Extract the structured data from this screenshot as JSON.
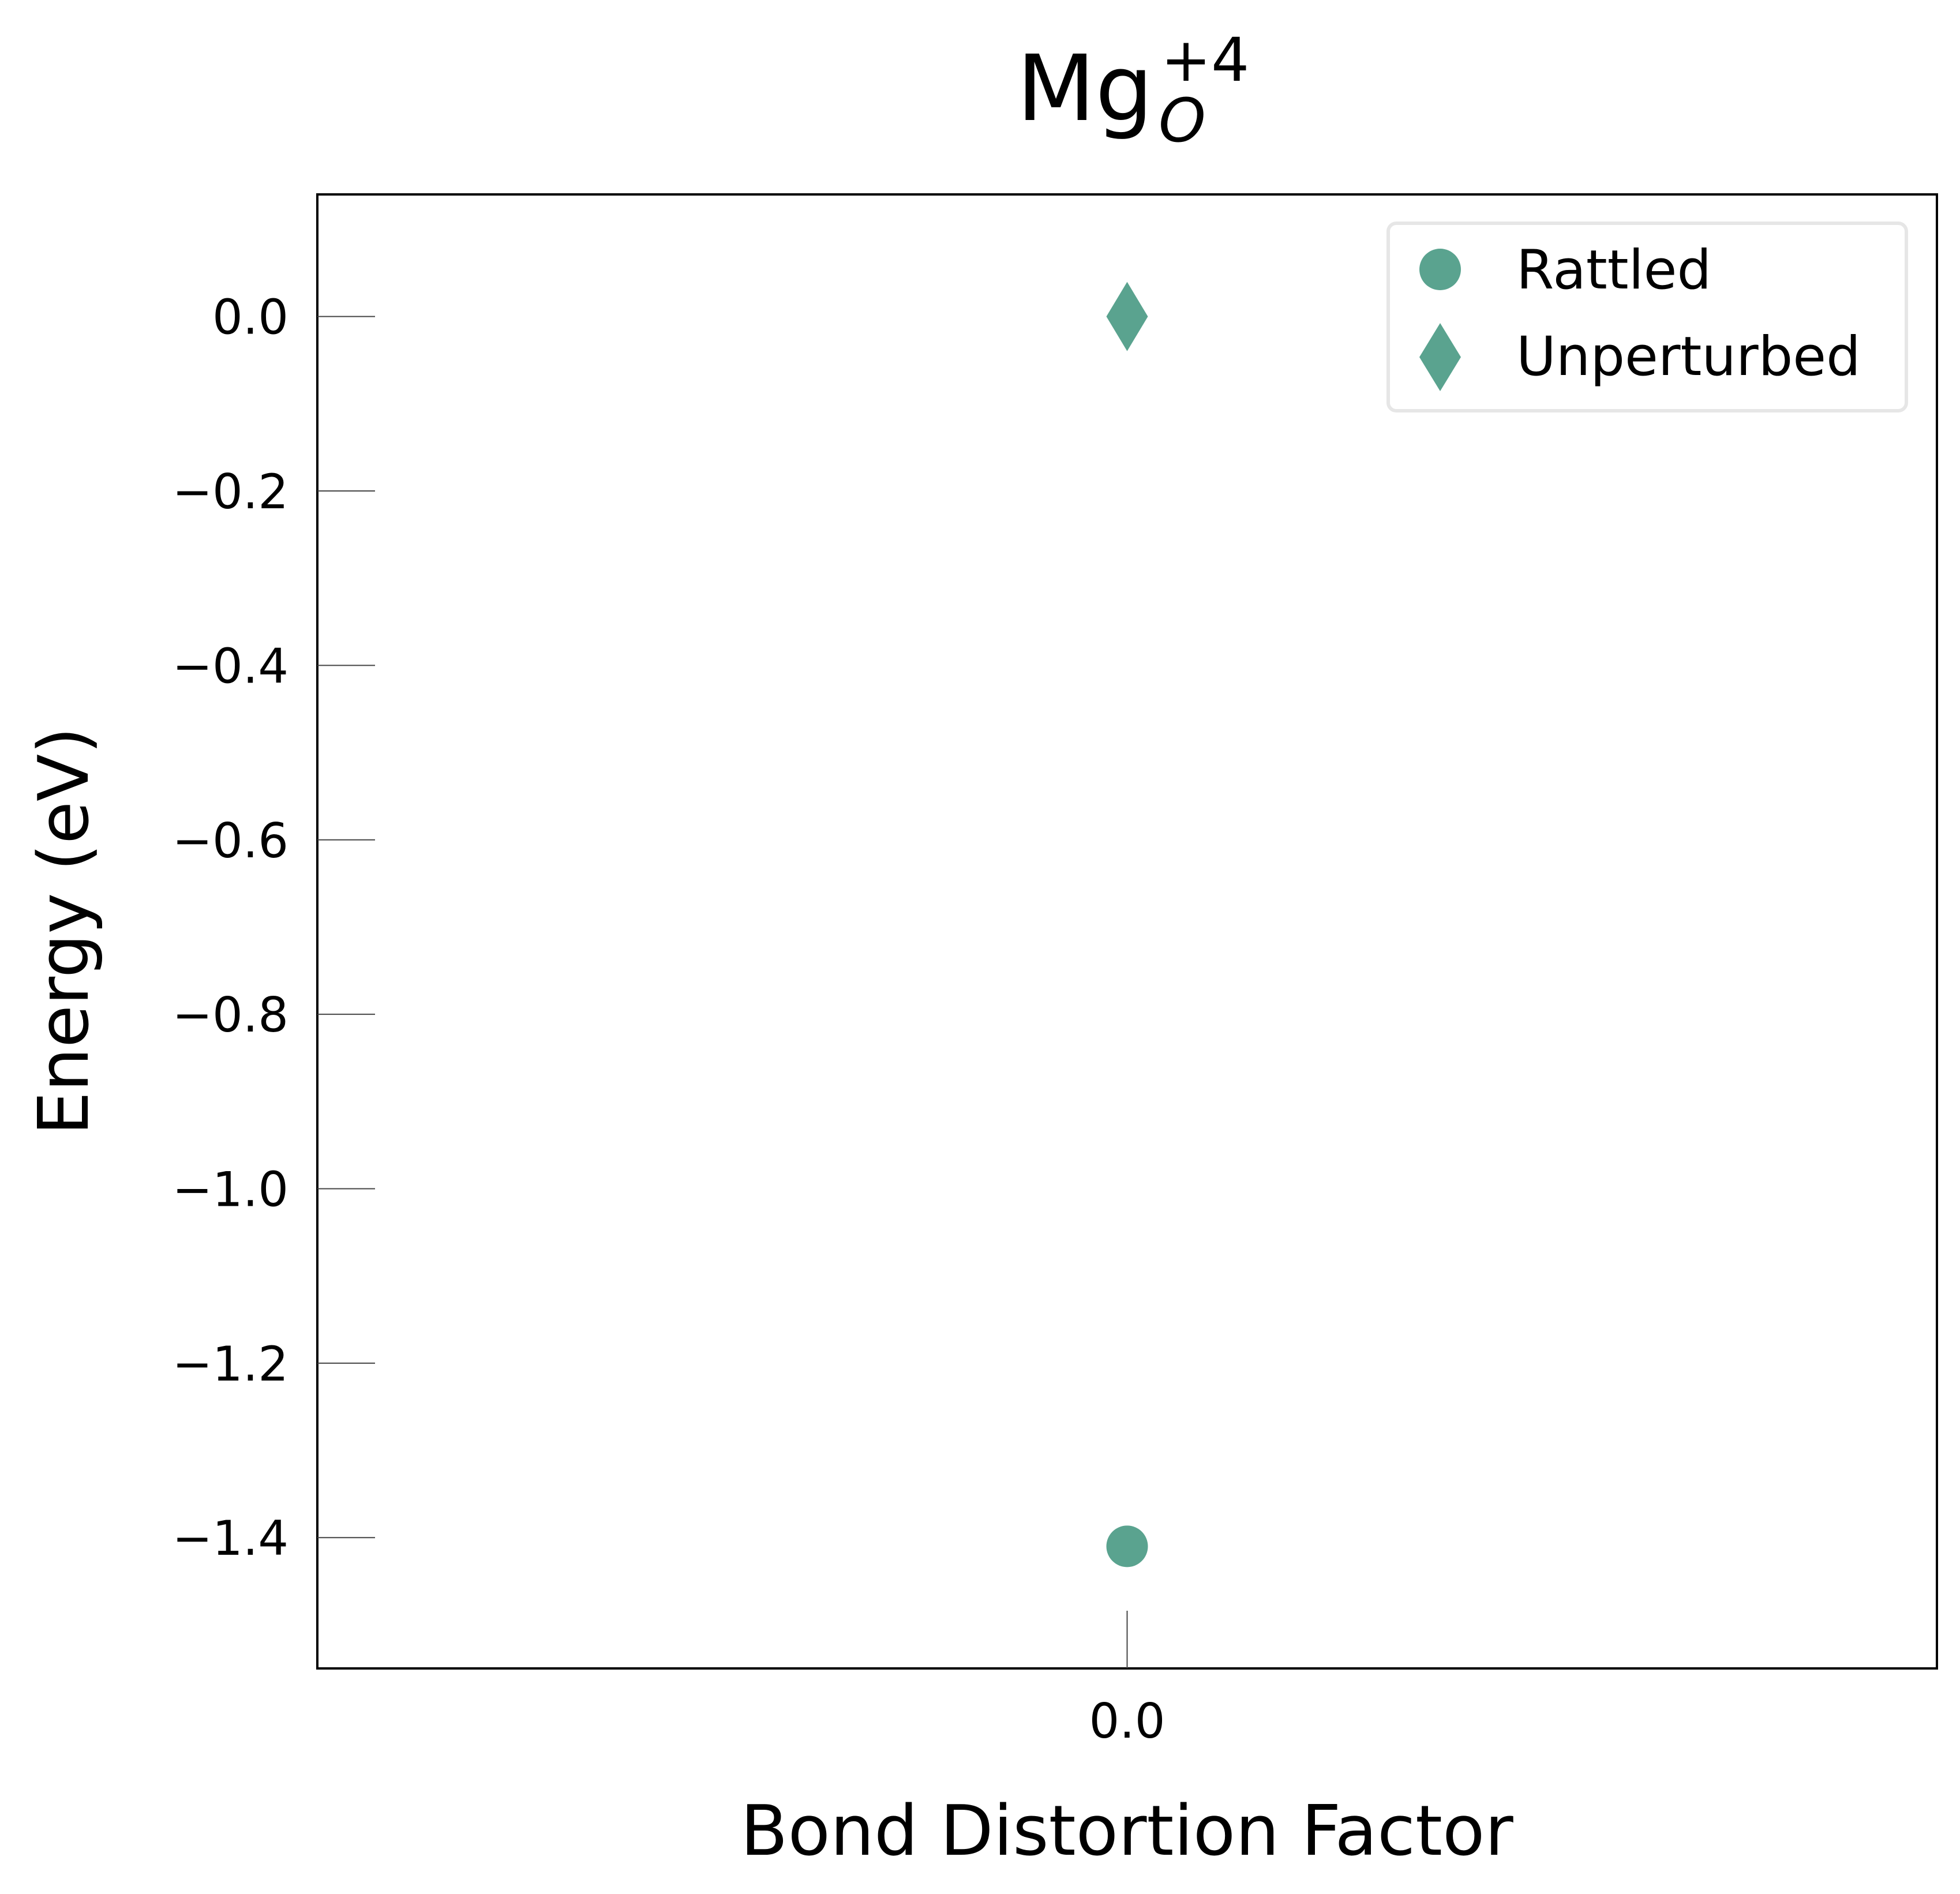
{
  "chart_data": {
    "type": "scatter",
    "title": {
      "base": "Mg",
      "subscript": "O",
      "superscript": "+4"
    },
    "xlabel": "Bond Distortion Factor",
    "ylabel": "Energy (eV)",
    "x_ticks": [
      0.0
    ],
    "x_tick_labels": [
      "0.0"
    ],
    "y_ticks": [
      0.0,
      -0.2,
      -0.4,
      -0.6,
      -0.8,
      -1.0,
      -1.2,
      -1.4
    ],
    "y_tick_labels": [
      "0.0",
      "−0.2",
      "−0.4",
      "−0.6",
      "−0.8",
      "−1.0",
      "−1.2",
      "−1.4"
    ],
    "xlim": [
      -0.5,
      0.5
    ],
    "ylim": [
      -1.55,
      0.14
    ],
    "grid": false,
    "legend_position": "upper right",
    "series": [
      {
        "name": "Rattled",
        "marker": "circle",
        "color": "#5aa38f",
        "points": [
          {
            "x": 0.0,
            "y": -1.41
          }
        ]
      },
      {
        "name": "Unperturbed",
        "marker": "diamond",
        "color": "#5aa38f",
        "points": [
          {
            "x": 0.0,
            "y": 0.0
          }
        ]
      }
    ]
  }
}
